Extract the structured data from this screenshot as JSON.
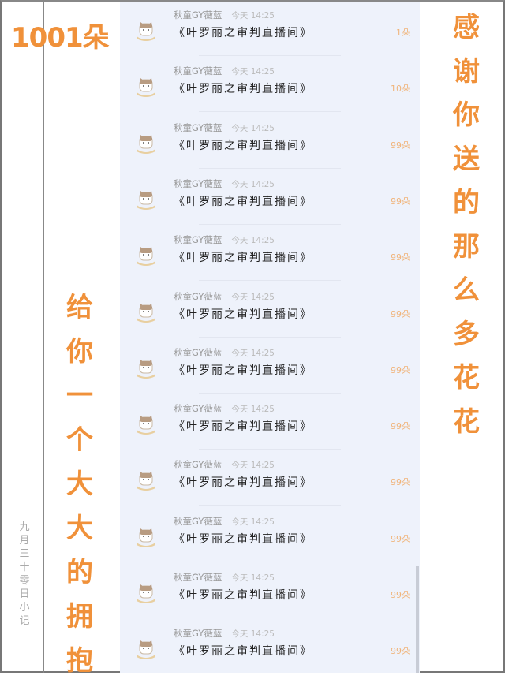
{
  "header": {
    "count_title": "1001朵"
  },
  "left_text": "给你一个大大的拥抱",
  "right_text": "感谢你送的那么多花花",
  "date_note": "九月三十零日 小记",
  "accent": "#f0913a",
  "gifts": [
    {
      "name": "秋童GY薇蓝",
      "time": "今天 14:25",
      "title": "《叶罗丽之审判直播间》",
      "amount": "1朵"
    },
    {
      "name": "秋童GY薇蓝",
      "time": "今天 14:25",
      "title": "《叶罗丽之审判直播间》",
      "amount": "10朵"
    },
    {
      "name": "秋童GY薇蓝",
      "time": "今天 14:25",
      "title": "《叶罗丽之审判直播间》",
      "amount": "99朵"
    },
    {
      "name": "秋童GY薇蓝",
      "time": "今天 14:25",
      "title": "《叶罗丽之审判直播间》",
      "amount": "99朵"
    },
    {
      "name": "秋童GY薇蓝",
      "time": "今天 14:25",
      "title": "《叶罗丽之审判直播间》",
      "amount": "99朵"
    },
    {
      "name": "秋童GY薇蓝",
      "time": "今天 14:25",
      "title": "《叶罗丽之审判直播间》",
      "amount": "99朵"
    },
    {
      "name": "秋童GY薇蓝",
      "time": "今天 14:25",
      "title": "《叶罗丽之审判直播间》",
      "amount": "99朵"
    },
    {
      "name": "秋童GY薇蓝",
      "time": "今天 14:25",
      "title": "《叶罗丽之审判直播间》",
      "amount": "99朵"
    },
    {
      "name": "秋童GY薇蓝",
      "time": "今天 14:25",
      "title": "《叶罗丽之审判直播间》",
      "amount": "99朵"
    },
    {
      "name": "秋童GY薇蓝",
      "time": "今天 14:25",
      "title": "《叶罗丽之审判直播间》",
      "amount": "99朵"
    },
    {
      "name": "秋童GY薇蓝",
      "time": "今天 14:25",
      "title": "《叶罗丽之审判直播间》",
      "amount": "99朵"
    },
    {
      "name": "秋童GY薇蓝",
      "time": "今天 14:25",
      "title": "《叶罗丽之审判直播间》",
      "amount": "99朵"
    }
  ]
}
